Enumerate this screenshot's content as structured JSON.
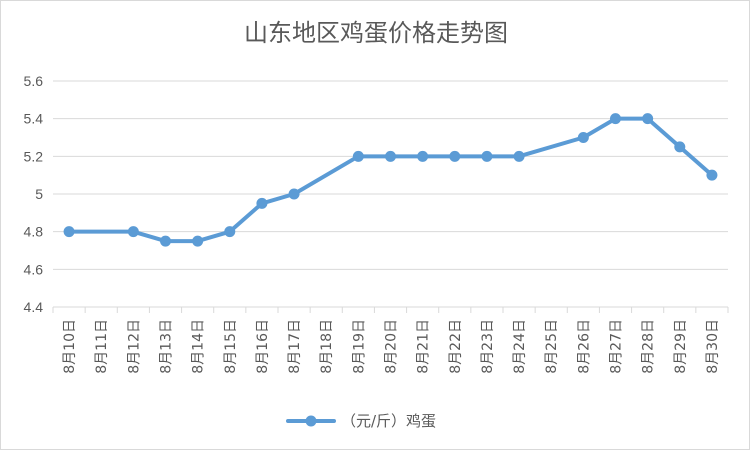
{
  "chart_data": {
    "type": "line",
    "title": "山东地区鸡蛋价格走势图",
    "categories": [
      "8月10日",
      "8月11日",
      "8月12日",
      "8月13日",
      "8月14日",
      "8月15日",
      "8月16日",
      "8月17日",
      "8月18日",
      "8月19日",
      "8月20日",
      "8月21日",
      "8月22日",
      "8月23日",
      "8月24日",
      "8月25日",
      "8月26日",
      "8月27日",
      "8月28日",
      "8月29日",
      "8月30日"
    ],
    "series": [
      {
        "name": "（元/斤）鸡蛋",
        "values": [
          4.8,
          null,
          4.8,
          4.75,
          4.75,
          4.8,
          4.95,
          5.0,
          null,
          5.2,
          5.2,
          5.2,
          5.2,
          5.2,
          5.2,
          null,
          5.3,
          5.4,
          5.4,
          5.25,
          5.1
        ]
      }
    ],
    "ylim": [
      4.4,
      5.6
    ],
    "yticks": [
      {
        "value": 4.4,
        "label": "4.4"
      },
      {
        "value": 4.6,
        "label": "4.6"
      },
      {
        "value": 4.8,
        "label": "4.8"
      },
      {
        "value": 5.0,
        "label": "5"
      },
      {
        "value": 5.2,
        "label": "5.2"
      },
      {
        "value": 5.4,
        "label": "5.4"
      },
      {
        "value": 5.6,
        "label": "5.6"
      }
    ],
    "grid": "horizontal",
    "legend": "bottom",
    "line_color": "#5b9bd5",
    "grid_color": "#d9d9d9",
    "text_color": "#595959"
  }
}
